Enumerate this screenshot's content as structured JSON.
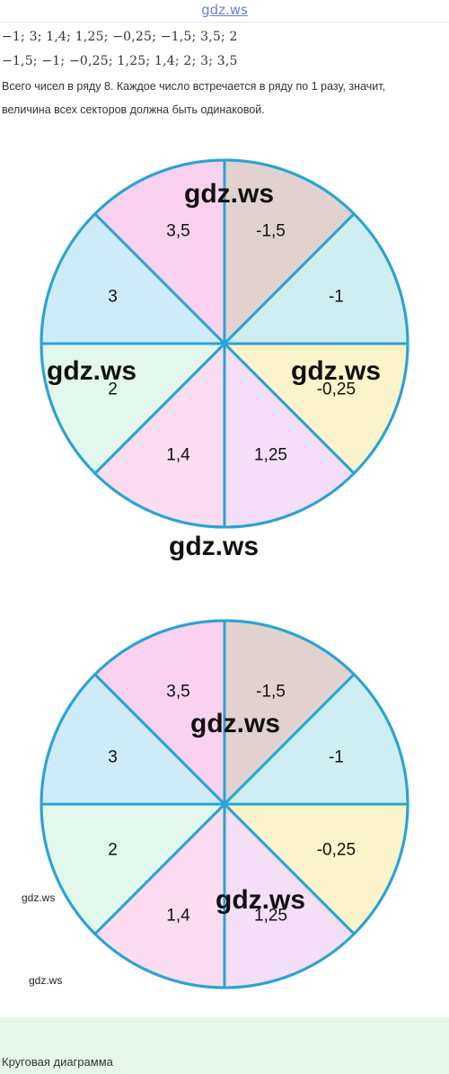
{
  "header": {
    "logo": "gdz.ws"
  },
  "content": {
    "line1": "−1;  3;  1,4;  1,25;  −0,25;  −1,5;  3,5;  2",
    "line2": "−1,5;  −1;  −0,25;  1,25;  1,4;  2;  3;  3,5",
    "paragraph_line1": "Всего чисел в ряду 8. Каждое число встречается в ряду по 1 разу, значит,",
    "paragraph_line2": "величина всех секторов должна быть одинаковой."
  },
  "watermarks": {
    "w1": "gdz.ws",
    "w2": "gdz.ws",
    "w3": "gdz.ws",
    "w4": "gdz.ws",
    "w5": "gdz.ws",
    "w6": "gdz.ws",
    "w7": "gdz.ws",
    "w8": "gdz.ws"
  },
  "colors": {
    "outline": "#2aa3d5",
    "c_minus1_5": "#e2d2cf",
    "c_minus1": "#cfeef2",
    "c_minus0_25": "#fbf3c9",
    "c_1_25": "#f5def8",
    "c_1_4": "#fbdcf0",
    "c_2": "#e3f8ec",
    "c_3": "#cdebf9",
    "c_3_5": "#fad1ef",
    "footer_band": "#e6f7ea"
  },
  "chart_data": [
    {
      "type": "pie",
      "categories": [
        "-1,5",
        "-1",
        "-0,25",
        "1,25",
        "1,4",
        "2",
        "3",
        "3,5"
      ],
      "values": [
        1,
        1,
        1,
        1,
        1,
        1,
        1,
        1
      ],
      "colors": [
        "#e2d2cf",
        "#cfeef2",
        "#fbf3c9",
        "#f5def8",
        "#fbdcf0",
        "#e3f8ec",
        "#cdebf9",
        "#fad1ef"
      ]
    },
    {
      "type": "pie",
      "categories": [
        "-1,5",
        "-1",
        "-0,25",
        "1,25",
        "1,4",
        "2",
        "3",
        "3,5"
      ],
      "values": [
        1,
        1,
        1,
        1,
        1,
        1,
        1,
        1
      ],
      "colors": [
        "#e2d2cf",
        "#cfeef2",
        "#fbf3c9",
        "#f5def8",
        "#fbdcf0",
        "#e3f8ec",
        "#cdebf9",
        "#fad1ef"
      ]
    }
  ],
  "footer": {
    "caption": "Круговая диаграмма"
  }
}
